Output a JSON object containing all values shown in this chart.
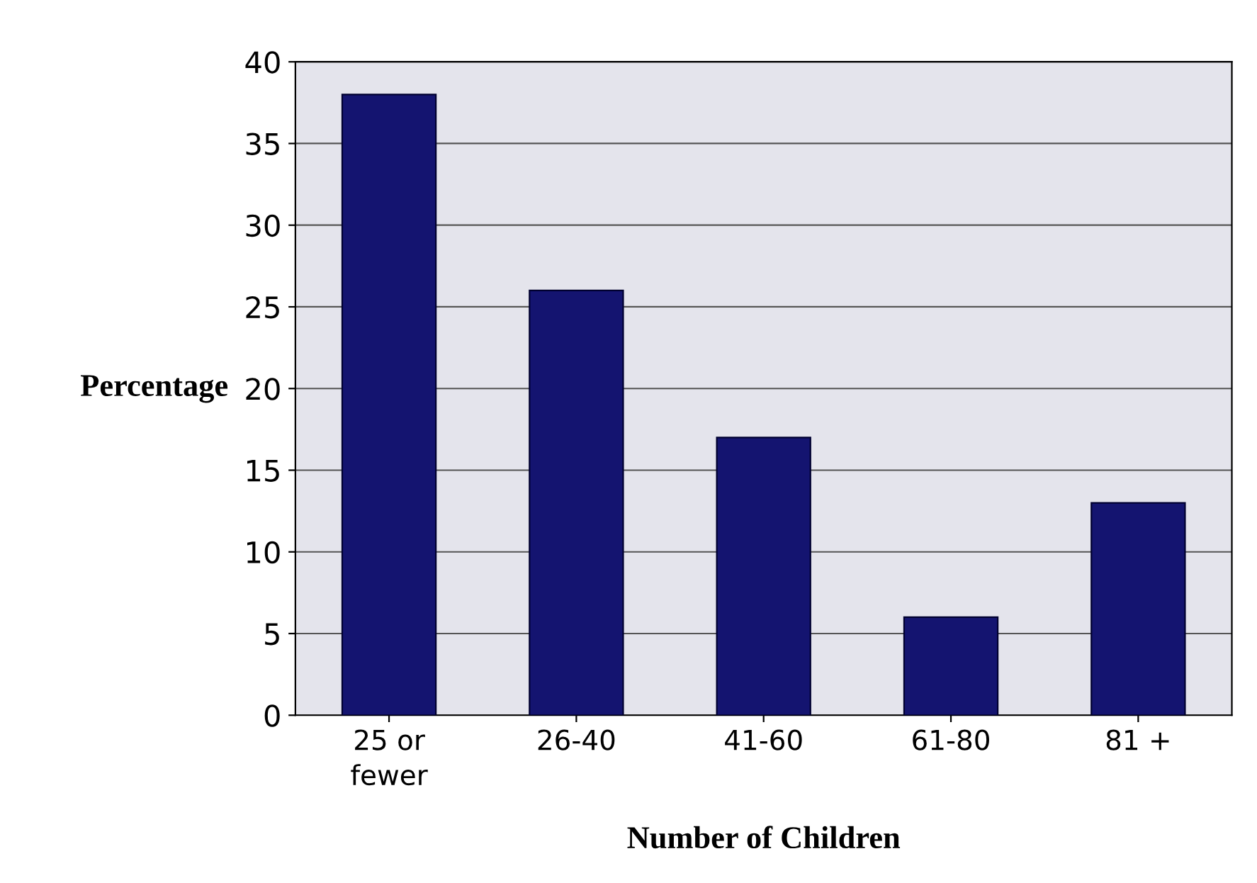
{
  "chart_data": {
    "type": "bar",
    "xlabel": "Number of Children",
    "ylabel": "Percentage",
    "categories": [
      "25 or\nfewer",
      "26-40",
      "41-60",
      "61-80",
      "81 +"
    ],
    "values": [
      38,
      26,
      17,
      6,
      13
    ],
    "color": "#141470",
    "ylim": [
      0,
      40
    ],
    "yticks": [
      0,
      5,
      10,
      15,
      20,
      25,
      30,
      35,
      40
    ],
    "grid": "y"
  }
}
